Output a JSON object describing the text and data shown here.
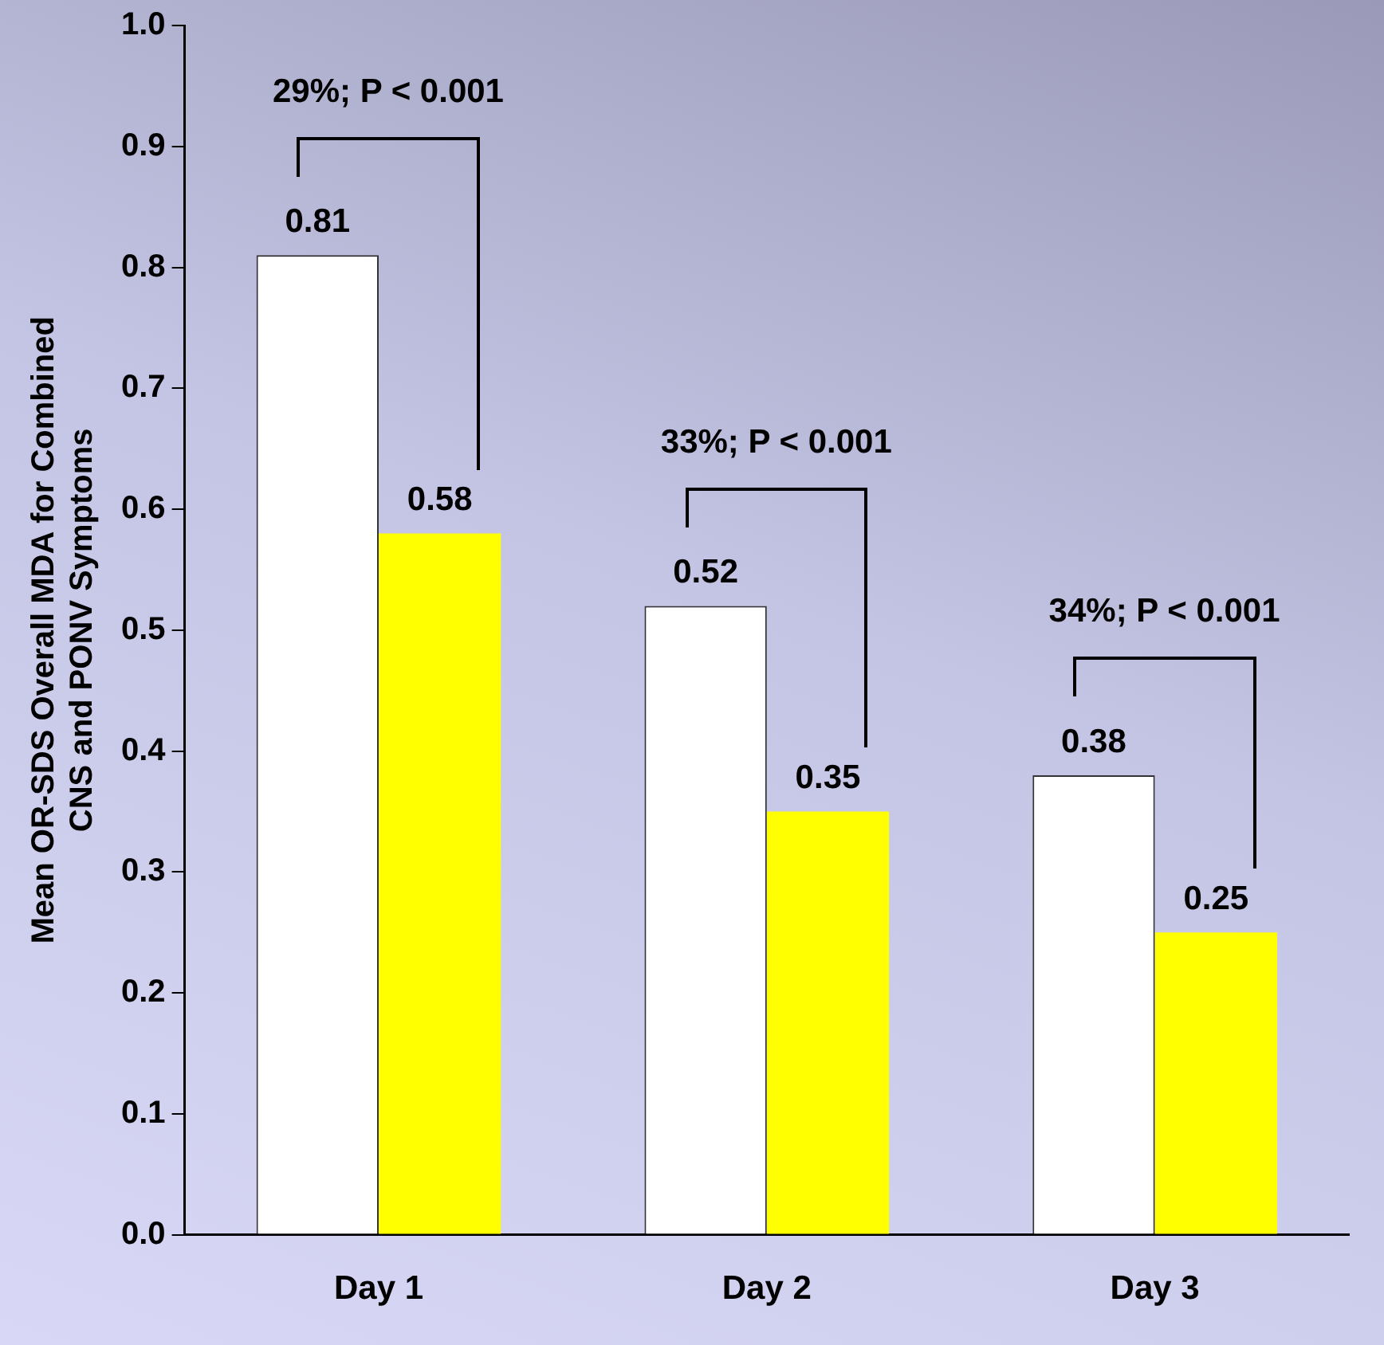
{
  "chart_data": {
    "type": "bar",
    "ylabel": "Mean OR-SDS Overall MDA for Combined\nCNS and PONV Symptoms",
    "categories": [
      "Day 1",
      "Day 2",
      "Day 3"
    ],
    "series": [
      {
        "color": "#ffffff",
        "values": [
          0.81,
          0.52,
          0.38
        ]
      },
      {
        "color": "#ffff00",
        "values": [
          0.58,
          0.35,
          0.25
        ]
      }
    ],
    "ylim": [
      0,
      1.0
    ],
    "yticks": [
      {
        "value": 0,
        "label": "0.0"
      },
      {
        "value": 0.1,
        "label": "0.1"
      },
      {
        "value": 0.2,
        "label": "0.2"
      },
      {
        "value": 0.3,
        "label": "0.3"
      },
      {
        "value": 0.4,
        "label": "0.4"
      },
      {
        "value": 0.5,
        "label": "0.5"
      },
      {
        "value": 0.6,
        "label": "0.6"
      },
      {
        "value": 0.7,
        "label": "0.7"
      },
      {
        "value": 0.8,
        "label": "0.8"
      },
      {
        "value": 0.9,
        "label": "0.9"
      },
      {
        "value": 1.0,
        "label": "1.0"
      }
    ],
    "grid": false,
    "legend": false,
    "data_labels": true,
    "annotations": [
      "29%; P < 0.001",
      "33%; P < 0.001",
      "34%; P < 0.001"
    ]
  }
}
